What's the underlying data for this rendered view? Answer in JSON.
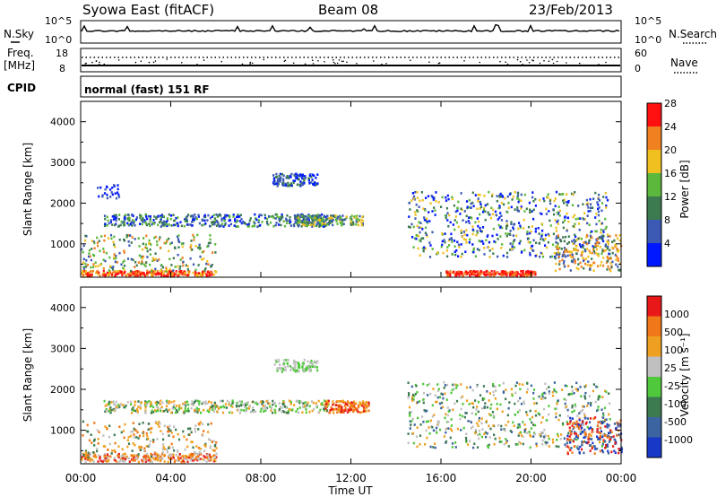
{
  "header": {
    "station": "Syowa East (fitACF)",
    "beam": "Beam 08",
    "date": "23/Feb/2013"
  },
  "panels": {
    "nsky": {
      "left_label": "N.Sky",
      "right_label": "N.Search",
      "tick_hi": "10^5",
      "tick_lo": "10^0"
    },
    "freq": {
      "left_label_1": "Freq.",
      "left_label_2": "[MHz]",
      "tick_hi": "18",
      "tick_lo": "8",
      "right_label": "Nave",
      "right_tick_hi": "60",
      "right_tick_lo": "0"
    },
    "cpid": {
      "left_label": "CPID",
      "mode_text": "normal (fast) 151 RF"
    }
  },
  "chart_data": [
    {
      "type": "heatmap",
      "name": "power",
      "ylabel": "Slant Range [km]",
      "ylim": [
        180,
        4500
      ],
      "yticks": [
        "1000",
        "2000",
        "3000",
        "4000"
      ],
      "colorbar": {
        "label": "Power [dB]",
        "tick_labels": [
          "4",
          "8",
          "12",
          "16",
          "20",
          "24",
          "28"
        ],
        "colors": [
          "#0018ff",
          "#3c5ab4",
          "#3c7a50",
          "#5cb83c",
          "#f0c020",
          "#f08020",
          "#ff1010"
        ]
      }
    },
    {
      "type": "heatmap",
      "name": "velocity",
      "ylabel": "Slant Range [km]",
      "ylim": [
        180,
        4500
      ],
      "yticks": [
        "1000",
        "2000",
        "3000",
        "4000"
      ],
      "xlabel": "Time UT",
      "xticks": [
        "00:00",
        "04:00",
        "08:00",
        "12:00",
        "16:00",
        "20:00",
        "00:00"
      ],
      "colorbar": {
        "label": "Velocity [m s⁻¹]",
        "tick_labels": [
          "1000",
          "500",
          "100",
          "25",
          "-25",
          "-100",
          "-500",
          "-1000"
        ],
        "colors": [
          "#1838c8",
          "#3c64a0",
          "#3c7a50",
          "#50c83c",
          "#c0c0c0",
          "#f0a020",
          "#f07818",
          "#e81818"
        ]
      }
    }
  ]
}
